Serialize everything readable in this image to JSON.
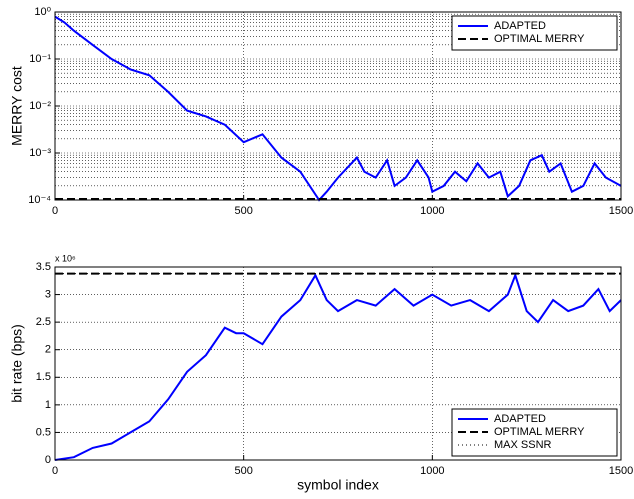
{
  "chart_data": [
    {
      "type": "line",
      "ylabel": "MERRY cost",
      "log_y": true,
      "grid": true,
      "legend": "upper right",
      "xlim": [
        0,
        1500
      ],
      "xticks": [
        0,
        500,
        1000,
        1500
      ],
      "ylim": [
        0.0001,
        1
      ],
      "yticks": [
        {
          "value": 0.0001,
          "label": "10⁻⁴"
        },
        {
          "value": 0.001,
          "label": "10⁻³"
        },
        {
          "value": 0.01,
          "label": "10⁻²"
        },
        {
          "value": 0.1,
          "label": "10⁻¹"
        },
        {
          "value": 1,
          "label": "10⁰"
        }
      ],
      "series": [
        {
          "name": "ADAPTED",
          "color": "#0000ff",
          "dash": "solid",
          "x": [
            0,
            25,
            50,
            100,
            150,
            200,
            250,
            300,
            350,
            400,
            450,
            500,
            550,
            600,
            650,
            700,
            720,
            750,
            800,
            820,
            850,
            880,
            900,
            930,
            960,
            990,
            1000,
            1030,
            1060,
            1090,
            1120,
            1150,
            1180,
            1200,
            1230,
            1260,
            1290,
            1310,
            1340,
            1370,
            1400,
            1430,
            1460,
            1500
          ],
          "values": [
            0.8,
            0.6,
            0.4,
            0.2,
            0.1,
            0.06,
            0.045,
            0.02,
            0.008,
            0.006,
            0.004,
            0.0017,
            0.0025,
            0.0008,
            0.0004,
            0.0001,
            0.00015,
            0.0003,
            0.0008,
            0.0004,
            0.0003,
            0.0007,
            0.0002,
            0.0003,
            0.0007,
            0.0003,
            0.00015,
            0.0002,
            0.0004,
            0.00025,
            0.0006,
            0.0003,
            0.0004,
            0.00012,
            0.0002,
            0.0007,
            0.0009,
            0.0004,
            0.0006,
            0.00015,
            0.0002,
            0.0006,
            0.0003,
            0.0002
          ]
        },
        {
          "name": "OPTIMAL MERRY",
          "color": "#000000",
          "dash": "dashed",
          "x": [
            0,
            1500
          ],
          "values": [
            0.000105,
            0.000105
          ]
        }
      ]
    },
    {
      "type": "line",
      "xlabel": "symbol index",
      "ylabel": "bit rate (bps)",
      "y_multiplier": "x 10⁶",
      "log_y": false,
      "grid": true,
      "legend": "lower right",
      "xlim": [
        0,
        1500
      ],
      "xticks": [
        0,
        500,
        1000,
        1500
      ],
      "ylim": [
        0,
        3.5
      ],
      "yticks": [
        0,
        0.5,
        1,
        1.5,
        2,
        2.5,
        3,
        3.5
      ],
      "series": [
        {
          "name": "ADAPTED",
          "color": "#0000ff",
          "dash": "solid",
          "x": [
            0,
            50,
            100,
            150,
            200,
            250,
            300,
            350,
            400,
            450,
            480,
            500,
            550,
            600,
            650,
            690,
            720,
            750,
            800,
            850,
            900,
            950,
            1000,
            1050,
            1100,
            1150,
            1200,
            1220,
            1250,
            1280,
            1320,
            1360,
            1400,
            1440,
            1470,
            1500
          ],
          "values": [
            0,
            0.05,
            0.22,
            0.3,
            0.5,
            0.7,
            1.1,
            1.6,
            1.9,
            2.4,
            2.3,
            2.3,
            2.1,
            2.6,
            2.9,
            3.35,
            2.9,
            2.7,
            2.9,
            2.8,
            3.1,
            2.8,
            3.0,
            2.8,
            2.9,
            2.7,
            3.0,
            3.35,
            2.7,
            2.5,
            2.9,
            2.7,
            2.8,
            3.1,
            2.7,
            2.9
          ]
        },
        {
          "name": "OPTIMAL MERRY",
          "color": "#000000",
          "dash": "dashed",
          "x": [
            0,
            1500
          ],
          "values": [
            3.38,
            3.38
          ]
        },
        {
          "name": "MAX SSNR",
          "color": "#000000",
          "dash": "dotted",
          "x": [
            0,
            1500
          ],
          "values": [
            3.38,
            3.38
          ]
        }
      ]
    }
  ]
}
